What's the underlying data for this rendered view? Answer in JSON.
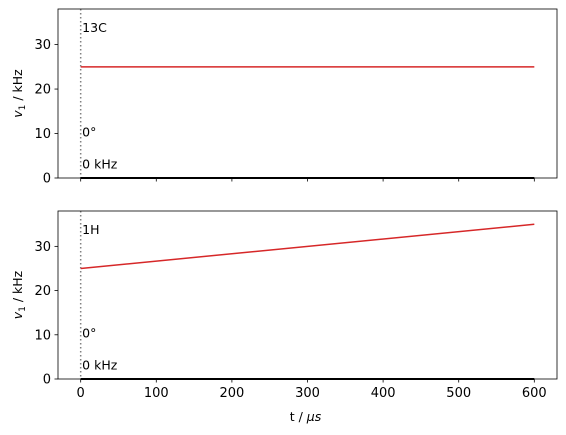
{
  "chart_data": [
    {
      "type": "line",
      "channel_label": "13C",
      "phase_label": "0°",
      "offset_label": "0 kHz",
      "ylabel_main": "v",
      "ylabel_sub": "1",
      "ylabel_unit": " / kHz",
      "xlim": [
        -30,
        630
      ],
      "ylim": [
        0,
        38
      ],
      "yticks": [
        0,
        10,
        20,
        30
      ],
      "xticks": [
        0,
        100,
        200,
        300,
        400,
        500,
        600
      ],
      "show_xtick_labels": false,
      "series": [
        {
          "role": "amplitude",
          "color": "#d62728",
          "x": [
            0,
            600
          ],
          "y": [
            25,
            25
          ]
        },
        {
          "role": "offset",
          "color": "#000000",
          "x": [
            0,
            600
          ],
          "y": [
            0,
            0
          ]
        }
      ],
      "marker_line": {
        "x": 0,
        "color": "#808080",
        "style": "dotted"
      }
    },
    {
      "type": "line",
      "channel_label": "1H",
      "phase_label": "0°",
      "offset_label": "0 kHz",
      "ylabel_main": "v",
      "ylabel_sub": "1",
      "ylabel_unit": " / kHz",
      "xlabel_main": "t / ",
      "xlabel_unit": "μs",
      "xlim": [
        -30,
        630
      ],
      "ylim": [
        0,
        38
      ],
      "yticks": [
        0,
        10,
        20,
        30
      ],
      "xticks": [
        0,
        100,
        200,
        300,
        400,
        500,
        600
      ],
      "show_xtick_labels": true,
      "series": [
        {
          "role": "amplitude",
          "color": "#d62728",
          "x": [
            0,
            600
          ],
          "y": [
            25,
            35
          ]
        },
        {
          "role": "offset",
          "color": "#000000",
          "x": [
            0,
            600
          ],
          "y": [
            0,
            0
          ]
        }
      ],
      "marker_line": {
        "x": 0,
        "color": "#808080",
        "style": "dotted"
      }
    }
  ]
}
